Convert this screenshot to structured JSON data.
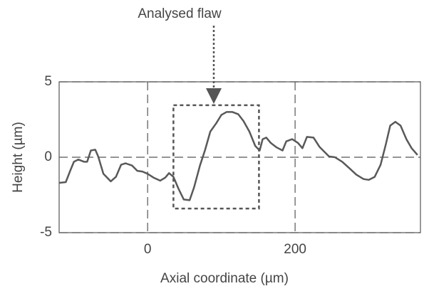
{
  "chart_data": {
    "type": "line",
    "annotation": "Analysed flaw",
    "xlabel": "Axial coordinate (µm)",
    "ylabel": "Height (µm)",
    "xlim": [
      -120,
      370
    ],
    "ylim": [
      -5,
      5
    ],
    "xticks": [
      0,
      200
    ],
    "yticks": [
      -5,
      0,
      5
    ],
    "grid": true,
    "color": "#595959",
    "flaw_region_x": [
      35,
      151
    ],
    "flaw_region_y": [
      -3.4,
      3.45
    ],
    "x": [
      -120,
      -111,
      -105,
      -100,
      -94,
      -86,
      -82,
      -77,
      -71,
      -67,
      -60,
      -50,
      -43,
      -36,
      -30,
      -21,
      -14,
      -7,
      0,
      8,
      17,
      24,
      29,
      35,
      42,
      49,
      57,
      63,
      71,
      78,
      85,
      93,
      100,
      107,
      115,
      123,
      130,
      138,
      146,
      152,
      156,
      161,
      167,
      175,
      183,
      188,
      196,
      204,
      210,
      216,
      225,
      233,
      240,
      246,
      254,
      264,
      273,
      283,
      293,
      300,
      308,
      316,
      323,
      329,
      336,
      343,
      351,
      358,
      366
    ],
    "y": [
      -1.7,
      -1.65,
      -0.9,
      -0.3,
      -0.15,
      -0.3,
      -0.3,
      0.45,
      0.5,
      0.05,
      -1.1,
      -1.6,
      -1.3,
      -0.5,
      -0.4,
      -0.55,
      -0.9,
      -0.95,
      -1.1,
      -1.35,
      -1.55,
      -1.35,
      -1.05,
      -1.3,
      -2.1,
      -2.8,
      -2.85,
      -2.0,
      -0.55,
      0.5,
      1.7,
      2.25,
      2.8,
      3.0,
      3.0,
      2.85,
      2.4,
      1.7,
      0.75,
      0.45,
      1.2,
      1.3,
      0.95,
      0.65,
      0.45,
      1.05,
      1.2,
      0.95,
      0.6,
      1.35,
      1.3,
      0.7,
      0.35,
      0.05,
      0.0,
      -0.3,
      -0.7,
      -1.15,
      -1.45,
      -1.5,
      -1.3,
      -0.5,
      0.85,
      2.1,
      2.35,
      2.1,
      1.2,
      0.6,
      0.15
    ]
  }
}
